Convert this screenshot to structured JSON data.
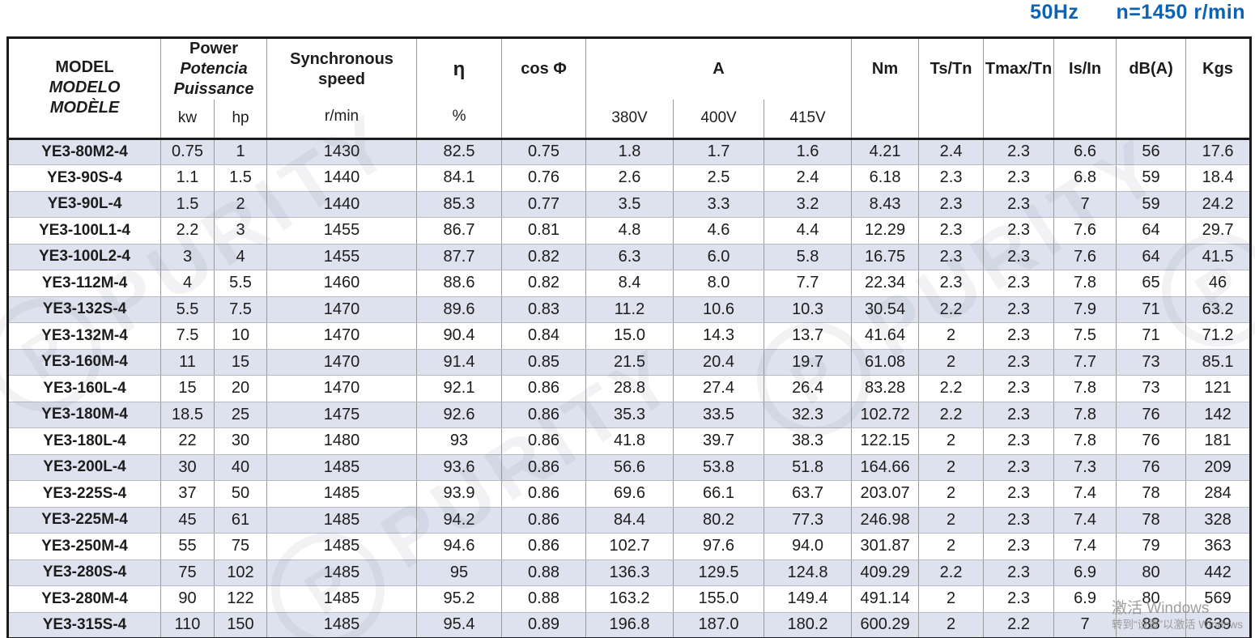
{
  "title": {
    "frequency": "50Hz",
    "speed": "n=1450 r/min"
  },
  "watermark": {
    "text": "PURITY",
    "logo_letter": "P"
  },
  "activation": {
    "line1": "激活 Windows",
    "line2": "转到“设置”以激活 Windows"
  },
  "table": {
    "header": {
      "model": [
        "MODEL",
        "MODELO",
        "MODÈLE"
      ],
      "power": {
        "labels": [
          "Power",
          "Potencia",
          "Puissance"
        ],
        "units": [
          "kw",
          "hp"
        ]
      },
      "sync_speed": {
        "lines": [
          "Synchronous",
          "speed"
        ],
        "unit": "r/min"
      },
      "eta": {
        "symbol": "η",
        "unit": "%"
      },
      "cos_phi": "cos Φ",
      "current": {
        "label": "A",
        "voltages": [
          "380V",
          "400V",
          "415V"
        ]
      },
      "nm": "Nm",
      "ts_tn": "Ts/Tn",
      "tmax_tn": "Tmax/Tn",
      "is_in": "Is/In",
      "db": "dB(A)",
      "kgs": "Kgs"
    },
    "rows": [
      {
        "model": "YE3-80M2-4",
        "kw": "0.75",
        "hp": "1",
        "speed": "1430",
        "eta": "82.5",
        "cos": "0.75",
        "a380": "1.8",
        "a400": "1.7",
        "a415": "1.6",
        "nm": "4.21",
        "ts": "2.4",
        "tmax": "2.3",
        "is_in": "6.6",
        "db": "56",
        "kgs": "17.6"
      },
      {
        "model": "YE3-90S-4",
        "kw": "1.1",
        "hp": "1.5",
        "speed": "1440",
        "eta": "84.1",
        "cos": "0.76",
        "a380": "2.6",
        "a400": "2.5",
        "a415": "2.4",
        "nm": "6.18",
        "ts": "2.3",
        "tmax": "2.3",
        "is_in": "6.8",
        "db": "59",
        "kgs": "18.4"
      },
      {
        "model": "YE3-90L-4",
        "kw": "1.5",
        "hp": "2",
        "speed": "1440",
        "eta": "85.3",
        "cos": "0.77",
        "a380": "3.5",
        "a400": "3.3",
        "a415": "3.2",
        "nm": "8.43",
        "ts": "2.3",
        "tmax": "2.3",
        "is_in": "7",
        "db": "59",
        "kgs": "24.2"
      },
      {
        "model": "YE3-100L1-4",
        "kw": "2.2",
        "hp": "3",
        "speed": "1455",
        "eta": "86.7",
        "cos": "0.81",
        "a380": "4.8",
        "a400": "4.6",
        "a415": "4.4",
        "nm": "12.29",
        "ts": "2.3",
        "tmax": "2.3",
        "is_in": "7.6",
        "db": "64",
        "kgs": "29.7"
      },
      {
        "model": "YE3-100L2-4",
        "kw": "3",
        "hp": "4",
        "speed": "1455",
        "eta": "87.7",
        "cos": "0.82",
        "a380": "6.3",
        "a400": "6.0",
        "a415": "5.8",
        "nm": "16.75",
        "ts": "2.3",
        "tmax": "2.3",
        "is_in": "7.6",
        "db": "64",
        "kgs": "41.5"
      },
      {
        "model": "YE3-112M-4",
        "kw": "4",
        "hp": "5.5",
        "speed": "1460",
        "eta": "88.6",
        "cos": "0.82",
        "a380": "8.4",
        "a400": "8.0",
        "a415": "7.7",
        "nm": "22.34",
        "ts": "2.3",
        "tmax": "2.3",
        "is_in": "7.8",
        "db": "65",
        "kgs": "46"
      },
      {
        "model": "YE3-132S-4",
        "kw": "5.5",
        "hp": "7.5",
        "speed": "1470",
        "eta": "89.6",
        "cos": "0.83",
        "a380": "11.2",
        "a400": "10.6",
        "a415": "10.3",
        "nm": "30.54",
        "ts": "2.2",
        "tmax": "2.3",
        "is_in": "7.9",
        "db": "71",
        "kgs": "63.2"
      },
      {
        "model": "YE3-132M-4",
        "kw": "7.5",
        "hp": "10",
        "speed": "1470",
        "eta": "90.4",
        "cos": "0.84",
        "a380": "15.0",
        "a400": "14.3",
        "a415": "13.7",
        "nm": "41.64",
        "ts": "2",
        "tmax": "2.3",
        "is_in": "7.5",
        "db": "71",
        "kgs": "71.2"
      },
      {
        "model": "YE3-160M-4",
        "kw": "11",
        "hp": "15",
        "speed": "1470",
        "eta": "91.4",
        "cos": "0.85",
        "a380": "21.5",
        "a400": "20.4",
        "a415": "19.7",
        "nm": "61.08",
        "ts": "2",
        "tmax": "2.3",
        "is_in": "7.7",
        "db": "73",
        "kgs": "85.1"
      },
      {
        "model": "YE3-160L-4",
        "kw": "15",
        "hp": "20",
        "speed": "1470",
        "eta": "92.1",
        "cos": "0.86",
        "a380": "28.8",
        "a400": "27.4",
        "a415": "26.4",
        "nm": "83.28",
        "ts": "2.2",
        "tmax": "2.3",
        "is_in": "7.8",
        "db": "73",
        "kgs": "121"
      },
      {
        "model": "YE3-180M-4",
        "kw": "18.5",
        "hp": "25",
        "speed": "1475",
        "eta": "92.6",
        "cos": "0.86",
        "a380": "35.3",
        "a400": "33.5",
        "a415": "32.3",
        "nm": "102.72",
        "ts": "2.2",
        "tmax": "2.3",
        "is_in": "7.8",
        "db": "76",
        "kgs": "142"
      },
      {
        "model": "YE3-180L-4",
        "kw": "22",
        "hp": "30",
        "speed": "1480",
        "eta": "93",
        "cos": "0.86",
        "a380": "41.8",
        "a400": "39.7",
        "a415": "38.3",
        "nm": "122.15",
        "ts": "2",
        "tmax": "2.3",
        "is_in": "7.8",
        "db": "76",
        "kgs": "181"
      },
      {
        "model": "YE3-200L-4",
        "kw": "30",
        "hp": "40",
        "speed": "1485",
        "eta": "93.6",
        "cos": "0.86",
        "a380": "56.6",
        "a400": "53.8",
        "a415": "51.8",
        "nm": "164.66",
        "ts": "2",
        "tmax": "2.3",
        "is_in": "7.3",
        "db": "76",
        "kgs": "209"
      },
      {
        "model": "YE3-225S-4",
        "kw": "37",
        "hp": "50",
        "speed": "1485",
        "eta": "93.9",
        "cos": "0.86",
        "a380": "69.6",
        "a400": "66.1",
        "a415": "63.7",
        "nm": "203.07",
        "ts": "2",
        "tmax": "2.3",
        "is_in": "7.4",
        "db": "78",
        "kgs": "284"
      },
      {
        "model": "YE3-225M-4",
        "kw": "45",
        "hp": "61",
        "speed": "1485",
        "eta": "94.2",
        "cos": "0.86",
        "a380": "84.4",
        "a400": "80.2",
        "a415": "77.3",
        "nm": "246.98",
        "ts": "2",
        "tmax": "2.3",
        "is_in": "7.4",
        "db": "78",
        "kgs": "328"
      },
      {
        "model": "YE3-250M-4",
        "kw": "55",
        "hp": "75",
        "speed": "1485",
        "eta": "94.6",
        "cos": "0.86",
        "a380": "102.7",
        "a400": "97.6",
        "a415": "94.0",
        "nm": "301.87",
        "ts": "2",
        "tmax": "2.3",
        "is_in": "7.4",
        "db": "79",
        "kgs": "363"
      },
      {
        "model": "YE3-280S-4",
        "kw": "75",
        "hp": "102",
        "speed": "1485",
        "eta": "95",
        "cos": "0.88",
        "a380": "136.3",
        "a400": "129.5",
        "a415": "124.8",
        "nm": "409.29",
        "ts": "2.2",
        "tmax": "2.3",
        "is_in": "6.9",
        "db": "80",
        "kgs": "442"
      },
      {
        "model": "YE3-280M-4",
        "kw": "90",
        "hp": "122",
        "speed": "1485",
        "eta": "95.2",
        "cos": "0.88",
        "a380": "163.2",
        "a400": "155.0",
        "a415": "149.4",
        "nm": "491.14",
        "ts": "2",
        "tmax": "2.3",
        "is_in": "6.9",
        "db": "80",
        "kgs": "569"
      },
      {
        "model": "YE3-315S-4",
        "kw": "110",
        "hp": "150",
        "speed": "1485",
        "eta": "95.4",
        "cos": "0.89",
        "a380": "196.8",
        "a400": "187.0",
        "a415": "180.2",
        "nm": "600.29",
        "ts": "2",
        "tmax": "2.2",
        "is_in": "7",
        "db": "88",
        "kgs": "639"
      }
    ]
  }
}
